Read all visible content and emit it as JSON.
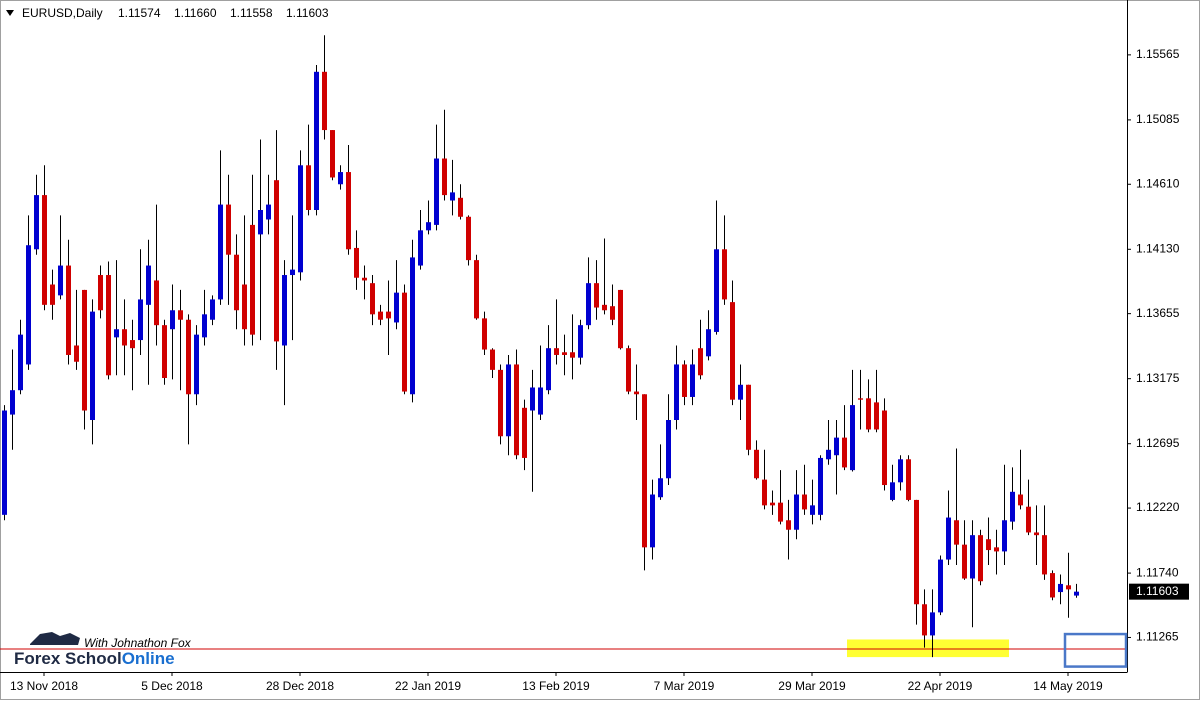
{
  "chart_data": {
    "type": "candlestick",
    "symbol": "EURUSD,Daily",
    "quote": [
      "1.11574",
      "1.11660",
      "1.11558",
      "1.11603"
    ],
    "categories": [
      null,
      null,
      null,
      null,
      null,
      "13 Nov 2018",
      null,
      null,
      null,
      null,
      null,
      null,
      null,
      null,
      null,
      null,
      null,
      null,
      null,
      null,
      null,
      "5 Dec 2018",
      null,
      null,
      null,
      null,
      null,
      null,
      null,
      null,
      null,
      null,
      null,
      null,
      null,
      null,
      null,
      "28 Dec 2018",
      null,
      null,
      null,
      null,
      null,
      null,
      null,
      null,
      null,
      null,
      null,
      null,
      null,
      null,
      null,
      "22 Jan 2019",
      null,
      null,
      null,
      null,
      null,
      null,
      null,
      null,
      null,
      null,
      null,
      null,
      null,
      null,
      null,
      "13 Feb 2019",
      null,
      null,
      null,
      null,
      null,
      null,
      null,
      null,
      null,
      null,
      null,
      null,
      null,
      null,
      null,
      "7 Mar 2019",
      null,
      null,
      null,
      null,
      null,
      null,
      null,
      null,
      null,
      null,
      null,
      null,
      null,
      null,
      null,
      "29 Mar 2019",
      null,
      null,
      null,
      null,
      null,
      null,
      null,
      null,
      null,
      null,
      null,
      null,
      null,
      null,
      null,
      "22 Apr 2019",
      null,
      null,
      null,
      null,
      null,
      null,
      null,
      null,
      null,
      null,
      null,
      null,
      null,
      null,
      null,
      "14 May 2019",
      null
    ],
    "open": [
      1.1217,
      1.1291,
      1.1309,
      1.1328,
      1.1413,
      1.1453,
      1.1387,
      1.1379,
      1.1401,
      1.1342,
      1.1383,
      1.1287,
      1.1394,
      1.1394,
      1.1348,
      1.1354,
      1.1346,
      1.1346,
      1.1372,
      1.139,
      1.1357,
      1.1354,
      1.1368,
      1.1361,
      1.1306,
      1.1348,
      1.1361,
      1.1376,
      1.1446,
      1.1409,
      1.1387,
      1.1431,
      1.1424,
      1.1435,
      1.1464,
      1.1342,
      1.1394,
      1.1396,
      1.1475,
      1.1442,
      1.1544,
      1.1501,
      1.1461,
      1.147,
      1.1414,
      1.1392,
      1.1388,
      1.1367,
      1.1367,
      1.1359,
      1.1381,
      1.1306,
      1.1401,
      1.1427,
      1.1431,
      1.148,
      1.1449,
      1.1451,
      1.1437,
      1.1405,
      1.1362,
      1.1339,
      1.1324,
      1.1275,
      1.1328,
      1.1296,
      1.1294,
      1.1291,
      1.1309,
      1.134,
      1.1337,
      1.1337,
      1.1333,
      1.1357,
      1.1388,
      1.1372,
      1.1371,
      1.1383,
      1.134,
      1.1308,
      1.1306,
      1.1193,
      1.123,
      1.1244,
      1.1287,
      1.1328,
      1.1304,
      1.134,
      1.1334,
      1.1352,
      1.1413,
      1.1374,
      1.1302,
      1.1313,
      1.1265,
      1.1243,
      1.1226,
      1.1226,
      1.1213,
      1.1206,
      1.1232,
      1.1217,
      1.1217,
      1.1258,
      1.1261,
      1.1274,
      1.125,
      1.1303,
      1.1303,
      1.13,
      1.1294,
      1.1228,
      1.1241,
      1.1258,
      1.1228,
      1.1151,
      1.1128,
      1.1145,
      1.1184,
      1.1213,
      1.1195,
      1.117,
      1.1202,
      1.1199,
      1.1193,
      1.119,
      1.1212,
      1.1232,
      1.1223,
      1.1204,
      1.1202,
      1.1174,
      1.116,
      1.1165,
      1.11574
    ],
    "high": [
      1.1298,
      1.1339,
      1.1361,
      1.1438,
      1.1468,
      1.1475,
      1.1398,
      1.1438,
      1.142,
      1.1383,
      1.1383,
      1.1376,
      1.1401,
      1.1404,
      1.1405,
      1.1376,
      1.1361,
      1.1413,
      1.142,
      1.1446,
      1.1361,
      1.1387,
      1.1383,
      1.1365,
      1.1357,
      1.1383,
      1.1379,
      1.1486,
      1.1468,
      1.1424,
      1.1438,
      1.1468,
      1.1494,
      1.1468,
      1.1501,
      1.1405,
      1.1438,
      1.1486,
      1.1505,
      1.1549,
      1.1571,
      1.1501,
      1.1475,
      1.149,
      1.1427,
      1.1401,
      1.1394,
      1.1372,
      1.139,
      1.1405,
      1.1387,
      1.142,
      1.1442,
      1.1449,
      1.1505,
      1.1516,
      1.1479,
      1.1461,
      1.1438,
      1.1409,
      1.1367,
      1.134,
      1.1328,
      1.1335,
      1.1339,
      1.1302,
      1.1324,
      1.1342,
      1.1357,
      1.1376,
      1.135,
      1.1365,
      1.1361,
      1.1407,
      1.1405,
      1.1421,
      1.1387,
      1.1383,
      1.1342,
      1.1328,
      1.1306,
      1.1243,
      1.1269,
      1.1306,
      1.1342,
      1.1331,
      1.1339,
      1.1361,
      1.1368,
      1.1449,
      1.1438,
      1.139,
      1.1328,
      1.1313,
      1.1272,
      1.1265,
      1.1235,
      1.125,
      1.1228,
      1.125,
      1.1254,
      1.1243,
      1.1261,
      1.1287,
      1.1287,
      1.1298,
      1.1324,
      1.1324,
      1.1317,
      1.1324,
      1.1303,
      1.1254,
      1.1261,
      1.1261,
      1.1228,
      1.1162,
      1.1162,
      1.1187,
      1.1235,
      1.1266,
      1.1213,
      1.1213,
      1.1206,
      1.1215,
      1.1206,
      1.1254,
      1.1252,
      1.1265,
      1.1243,
      1.1224,
      1.1224,
      1.1176,
      1.1173,
      1.1189,
      1.1166
    ],
    "low": [
      1.1213,
      1.1265,
      1.1306,
      1.1324,
      1.1409,
      1.1368,
      1.1361,
      1.1376,
      1.1328,
      1.1324,
      1.128,
      1.1269,
      1.1362,
      1.1317,
      1.132,
      1.132,
      1.1309,
      1.1335,
      1.1313,
      1.1342,
      1.1313,
      1.1317,
      1.1309,
      1.1269,
      1.1298,
      1.1342,
      1.1357,
      1.1372,
      1.1372,
      1.1354,
      1.1342,
      1.1342,
      1.1346,
      1.1424,
      1.1324,
      1.1298,
      1.1346,
      1.139,
      1.1438,
      1.1438,
      1.1494,
      1.1464,
      1.1457,
      1.1409,
      1.1383,
      1.1376,
      1.1357,
      1.1357,
      1.1335,
      1.1354,
      1.1306,
      1.13,
      1.1398,
      1.1424,
      1.1427,
      1.1449,
      1.1438,
      1.1435,
      1.1401,
      1.1361,
      1.1335,
      1.1318,
      1.1269,
      1.1261,
      1.1258,
      1.125,
      1.1234,
      1.1287,
      1.1306,
      1.1328,
      1.132,
      1.1317,
      1.1328,
      1.1354,
      1.1361,
      1.1365,
      1.1357,
      1.1339,
      1.1306,
      1.1287,
      1.1176,
      1.1184,
      1.1228,
      1.1239,
      1.128,
      1.1298,
      1.1298,
      1.1317,
      1.1331,
      1.135,
      1.1372,
      1.1298,
      1.1287,
      1.1261,
      1.1243,
      1.1221,
      1.1217,
      1.121,
      1.1184,
      1.1199,
      1.1217,
      1.121,
      1.1213,
      1.1254,
      1.1232,
      1.125,
      1.1249,
      1.128,
      1.1278,
      1.1278,
      1.1235,
      1.1227,
      1.1235,
      1.1227,
      1.1136,
      1.1119,
      1.1112,
      1.1143,
      1.118,
      1.118,
      1.1169,
      1.1134,
      1.1165,
      1.118,
      1.1173,
      1.118,
      1.1206,
      1.1221,
      1.1202,
      1.118,
      1.1169,
      1.1154,
      1.1151,
      1.1141,
      1.11558
    ],
    "close": [
      1.1294,
      1.1309,
      1.135,
      1.1416,
      1.1453,
      1.1372,
      1.1372,
      1.1401,
      1.1335,
      1.133,
      1.1294,
      1.1367,
      1.1368,
      1.132,
      1.1354,
      1.1342,
      1.134,
      1.1376,
      1.1401,
      1.1357,
      1.1318,
      1.1368,
      1.1361,
      1.1306,
      1.135,
      1.1365,
      1.1376,
      1.1446,
      1.1409,
      1.1368,
      1.1354,
      1.135,
      1.1442,
      1.1446,
      1.1345,
      1.1394,
      1.1398,
      1.1475,
      1.1442,
      1.1544,
      1.1501,
      1.1466,
      1.147,
      1.1413,
      1.1392,
      1.139,
      1.1365,
      1.1361,
      1.1362,
      1.1381,
      1.1308,
      1.1407,
      1.1427,
      1.1433,
      1.148,
      1.1453,
      1.1455,
      1.1437,
      1.1405,
      1.1362,
      1.1339,
      1.1324,
      1.1275,
      1.1328,
      1.1261,
      1.1259,
      1.1311,
      1.1311,
      1.134,
      1.1335,
      1.1335,
      1.1333,
      1.1357,
      1.1388,
      1.137,
      1.1368,
      1.1361,
      1.134,
      1.1308,
      1.1306,
      1.1193,
      1.1232,
      1.1244,
      1.1287,
      1.1328,
      1.1304,
      1.1328,
      1.132,
      1.1354,
      1.1413,
      1.1376,
      1.1302,
      1.1313,
      1.1265,
      1.1244,
      1.1224,
      1.1224,
      1.1212,
      1.1206,
      1.1232,
      1.1221,
      1.1224,
      1.1259,
      1.1265,
      1.1274,
      1.1252,
      1.1298,
      1.1302,
      1.128,
      1.128,
      1.1239,
      1.1241,
      1.1258,
      1.1228,
      1.1151,
      1.1128,
      1.1145,
      1.1184,
      1.1215,
      1.1195,
      1.117,
      1.1202,
      1.1168,
      1.1191,
      1.119,
      1.1213,
      1.1234,
      1.1224,
      1.1204,
      1.1202,
      1.1173,
      1.1156,
      1.1166,
      1.1162,
      1.11603
    ],
    "up_color": "#0000d0",
    "down_color": "#d00000",
    "ylim": [
      1.1101,
      1.1597
    ],
    "yticks": [
      1.11265,
      {
        "value": 1.1174,
        "label": "1.11740"
      },
      {
        "value": 1.1222,
        "label": "1.12220"
      },
      1.12695,
      1.13175,
      1.13655,
      {
        "value": 1.1413,
        "label": "1.14130"
      },
      {
        "value": 1.1461,
        "label": "1.14610"
      },
      1.15085,
      1.15565
    ],
    "support_line": {
      "value": 1.1118,
      "color": "#d00000"
    },
    "highlight_zone": {
      "from": 106,
      "to": 125,
      "ylim": [
        1.1112,
        1.1125
      ],
      "color": "#ffff33"
    },
    "marker_box": {
      "from": 133,
      "ylim": [
        1.1105,
        1.1129
      ],
      "color": "#4a78c8"
    },
    "watermark": {
      "brand": "Forex School",
      "brand_accent": "Online",
      "tagline": "With Johnathon Fox"
    }
  }
}
